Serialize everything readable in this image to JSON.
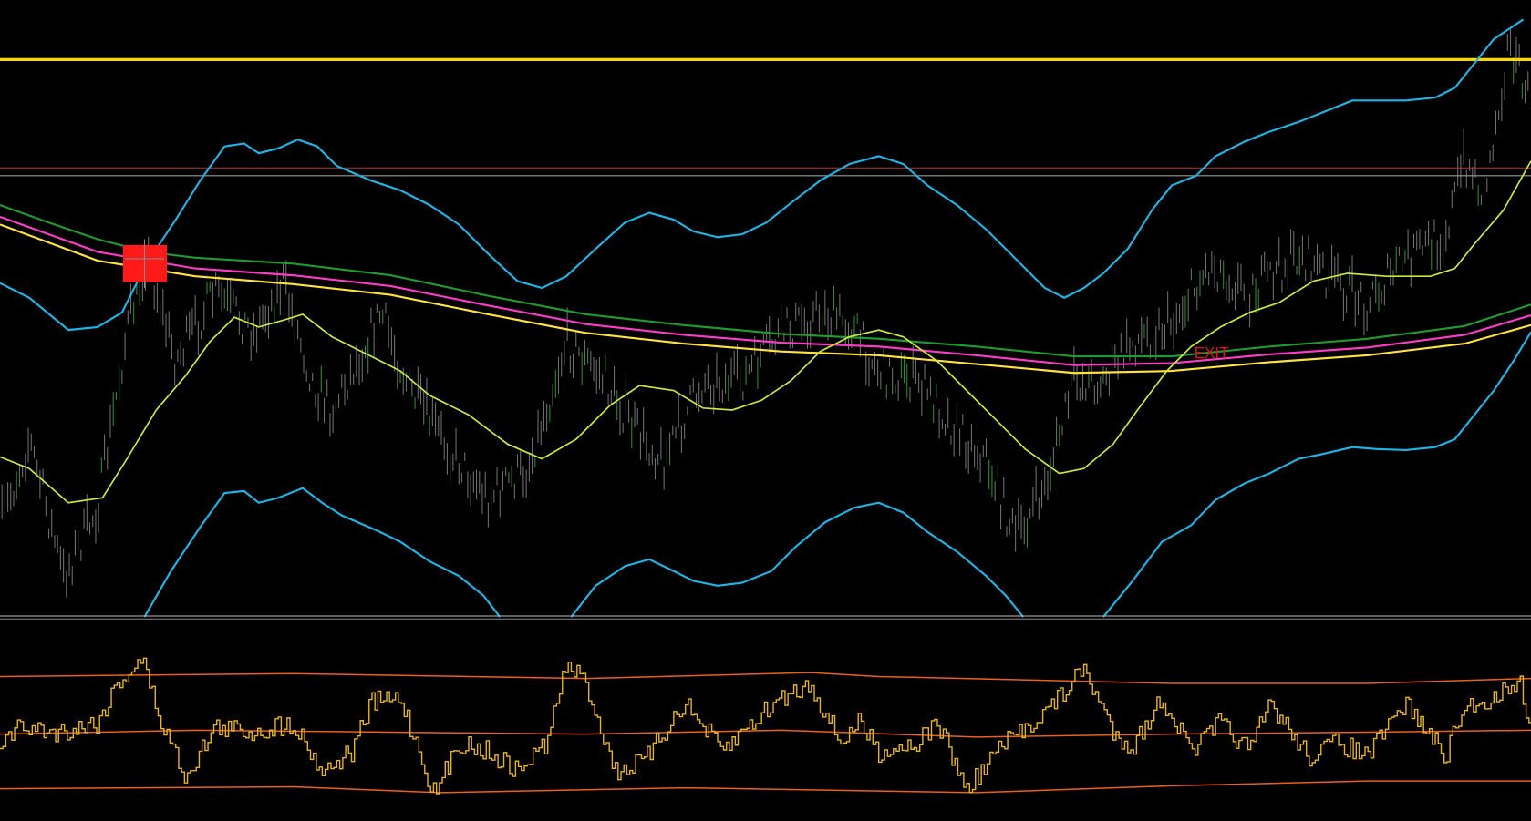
{
  "exit_label": "EXIT"
}
